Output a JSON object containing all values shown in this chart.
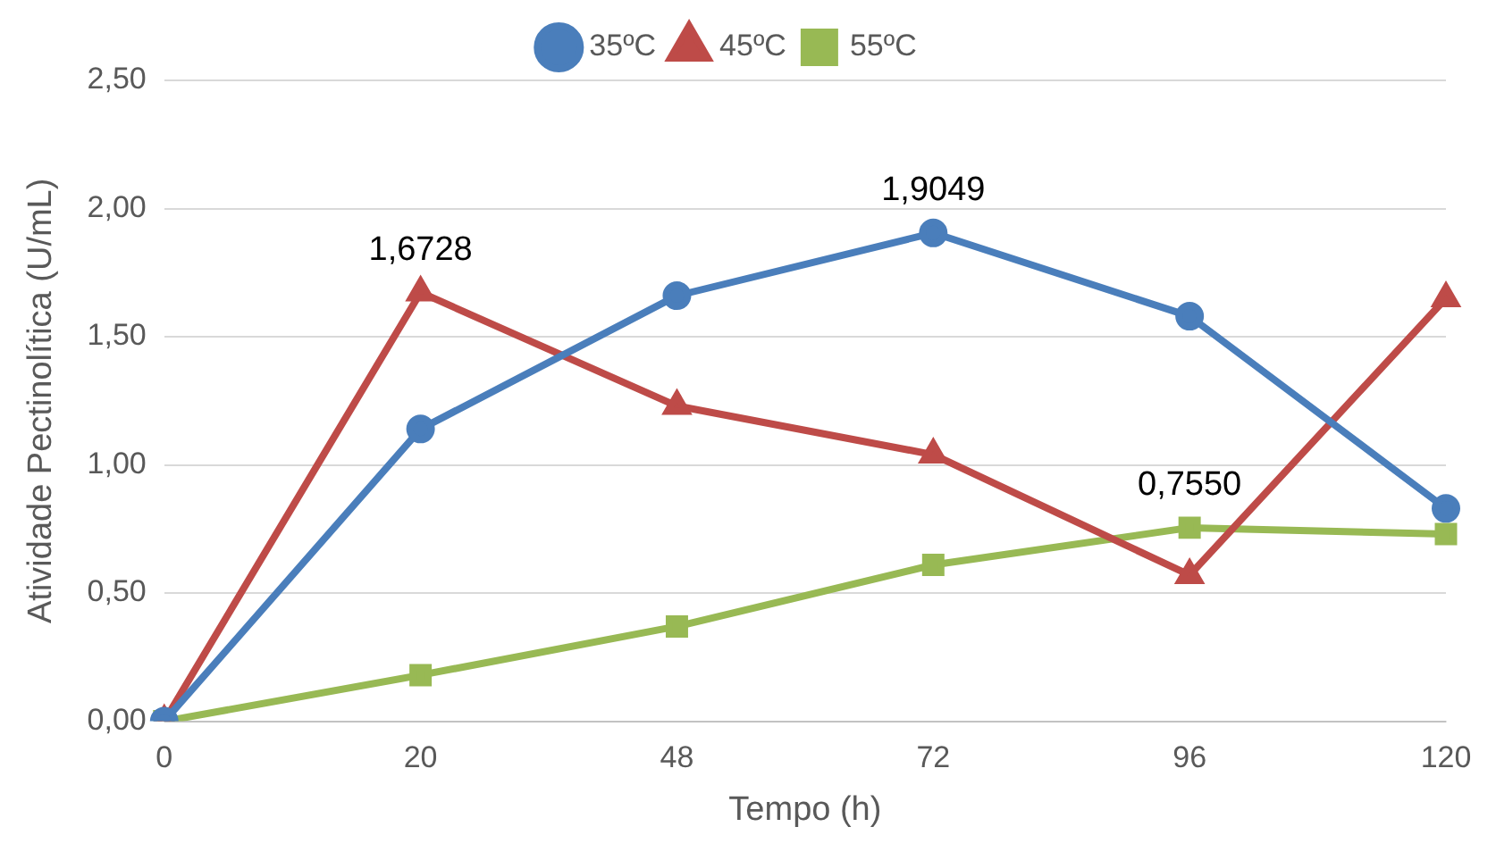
{
  "chart_data": {
    "type": "line",
    "xlabel": "Tempo (h)",
    "ylabel": "Atividade Pectinolítica (U/mL)",
    "categories": [
      "0",
      "20",
      "48",
      "72",
      "96",
      "120"
    ],
    "series": [
      {
        "name": "35ºC",
        "color": "#4a7ebb",
        "marker": "circle",
        "values": [
          0,
          1.14,
          1.66,
          1.9049,
          1.58,
          0.83
        ],
        "value_labels": [
          null,
          null,
          null,
          "1,9049",
          null,
          null
        ]
      },
      {
        "name": "45ºC",
        "color": "#be4b48",
        "marker": "triangle",
        "values": [
          0,
          1.6728,
          1.23,
          1.04,
          0.57,
          1.65
        ],
        "value_labels": [
          null,
          "1,6728",
          null,
          null,
          null,
          null
        ]
      },
      {
        "name": "55ºC",
        "color": "#98b954",
        "marker": "square",
        "values": [
          0,
          0.18,
          0.37,
          0.61,
          0.755,
          0.73
        ],
        "value_labels": [
          null,
          null,
          null,
          null,
          "0,7550",
          null
        ]
      }
    ],
    "ylim": [
      0,
      2.5
    ],
    "yticks": [
      {
        "value": 0,
        "label": "0,00"
      },
      {
        "value": 0.5,
        "label": "0,50"
      },
      {
        "value": 1,
        "label": "1,00"
      },
      {
        "value": 1.5,
        "label": "1,50"
      },
      {
        "value": 2,
        "label": "2,00"
      },
      {
        "value": 2.5,
        "label": "2,50"
      }
    ],
    "grid": "y",
    "legend": "top"
  }
}
